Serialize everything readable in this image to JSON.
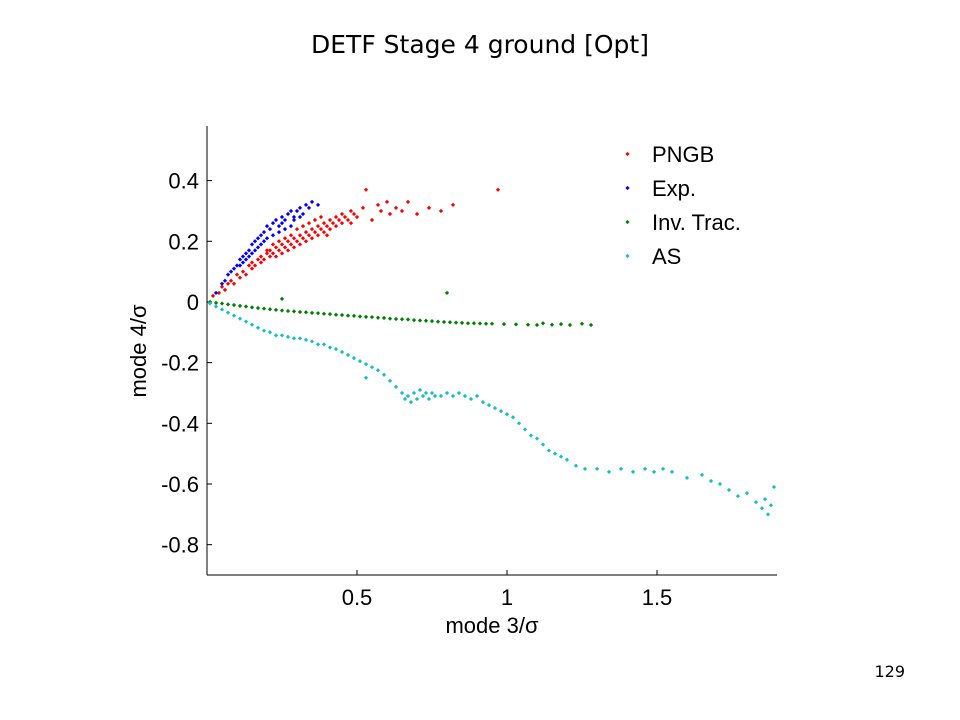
{
  "slide": {
    "title": "DETF Stage 4 ground [Opt]",
    "page_number": "129"
  },
  "chart_data": {
    "type": "scatter",
    "xlabel": "mode 3/σ",
    "ylabel": "mode 4/σ",
    "xlim": [
      0,
      1.9
    ],
    "ylim": [
      -0.9,
      0.58
    ],
    "xticks": [
      0.5,
      1,
      1.5
    ],
    "xtick_labels": [
      "0.5",
      "1",
      "1.5"
    ],
    "yticks": [
      0.4,
      0.2,
      0,
      -0.2,
      -0.4,
      -0.6,
      -0.8
    ],
    "ytick_labels": [
      "0.4",
      "0.2",
      "0",
      "-0.2",
      "-0.4",
      "-0.6",
      "-0.8"
    ],
    "grid": false,
    "legend_position": "top-right",
    "series": [
      {
        "name": "PNGB",
        "color": "#ff0000",
        "points": [
          [
            0.02,
            0.02
          ],
          [
            0.04,
            0.03
          ],
          [
            0.05,
            0.05
          ],
          [
            0.06,
            0.04
          ],
          [
            0.07,
            0.06
          ],
          [
            0.08,
            0.07
          ],
          [
            0.09,
            0.06
          ],
          [
            0.1,
            0.09
          ],
          [
            0.11,
            0.08
          ],
          [
            0.12,
            0.1
          ],
          [
            0.13,
            0.09
          ],
          [
            0.14,
            0.12
          ],
          [
            0.15,
            0.11
          ],
          [
            0.15,
            0.13
          ],
          [
            0.16,
            0.12
          ],
          [
            0.17,
            0.14
          ],
          [
            0.18,
            0.13
          ],
          [
            0.18,
            0.15
          ],
          [
            0.19,
            0.14
          ],
          [
            0.2,
            0.16
          ],
          [
            0.21,
            0.15
          ],
          [
            0.21,
            0.17
          ],
          [
            0.22,
            0.16
          ],
          [
            0.23,
            0.18
          ],
          [
            0.23,
            0.15
          ],
          [
            0.24,
            0.17
          ],
          [
            0.25,
            0.19
          ],
          [
            0.25,
            0.16
          ],
          [
            0.26,
            0.18
          ],
          [
            0.27,
            0.2
          ],
          [
            0.27,
            0.17
          ],
          [
            0.28,
            0.19
          ],
          [
            0.29,
            0.21
          ],
          [
            0.29,
            0.18
          ],
          [
            0.3,
            0.2
          ],
          [
            0.31,
            0.22
          ],
          [
            0.31,
            0.19
          ],
          [
            0.32,
            0.21
          ],
          [
            0.33,
            0.23
          ],
          [
            0.33,
            0.2
          ],
          [
            0.34,
            0.22
          ],
          [
            0.35,
            0.24
          ],
          [
            0.35,
            0.21
          ],
          [
            0.36,
            0.23
          ],
          [
            0.37,
            0.25
          ],
          [
            0.37,
            0.22
          ],
          [
            0.38,
            0.24
          ],
          [
            0.39,
            0.26
          ],
          [
            0.39,
            0.23
          ],
          [
            0.4,
            0.25
          ],
          [
            0.41,
            0.27
          ],
          [
            0.41,
            0.24
          ],
          [
            0.42,
            0.26
          ],
          [
            0.43,
            0.28
          ],
          [
            0.43,
            0.25
          ],
          [
            0.44,
            0.27
          ],
          [
            0.45,
            0.26
          ],
          [
            0.45,
            0.29
          ],
          [
            0.46,
            0.28
          ],
          [
            0.47,
            0.27
          ],
          [
            0.48,
            0.3
          ],
          [
            0.48,
            0.26
          ],
          [
            0.49,
            0.29
          ],
          [
            0.5,
            0.28
          ],
          [
            0.52,
            0.31
          ],
          [
            0.53,
            0.37
          ],
          [
            0.55,
            0.27
          ],
          [
            0.57,
            0.32
          ],
          [
            0.58,
            0.3
          ],
          [
            0.6,
            0.33
          ],
          [
            0.61,
            0.29
          ],
          [
            0.63,
            0.31
          ],
          [
            0.65,
            0.3
          ],
          [
            0.67,
            0.33
          ],
          [
            0.7,
            0.29
          ],
          [
            0.74,
            0.31
          ],
          [
            0.78,
            0.3
          ],
          [
            0.82,
            0.32
          ],
          [
            0.97,
            0.37
          ],
          [
            0.3,
            0.24
          ],
          [
            0.28,
            0.22
          ],
          [
            0.26,
            0.21
          ],
          [
            0.24,
            0.2
          ],
          [
            0.22,
            0.19
          ],
          [
            0.2,
            0.17
          ],
          [
            0.32,
            0.25
          ],
          [
            0.34,
            0.26
          ],
          [
            0.36,
            0.27
          ],
          [
            0.38,
            0.28
          ],
          [
            0.4,
            0.22
          ]
        ]
      },
      {
        "name": "Exp.",
        "color": "#0000ff",
        "points": [
          [
            0.03,
            0.03
          ],
          [
            0.05,
            0.06
          ],
          [
            0.06,
            0.07
          ],
          [
            0.07,
            0.09
          ],
          [
            0.08,
            0.1
          ],
          [
            0.09,
            0.11
          ],
          [
            0.1,
            0.12
          ],
          [
            0.11,
            0.14
          ],
          [
            0.12,
            0.15
          ],
          [
            0.13,
            0.16
          ],
          [
            0.14,
            0.17
          ],
          [
            0.15,
            0.19
          ],
          [
            0.16,
            0.2
          ],
          [
            0.17,
            0.21
          ],
          [
            0.18,
            0.22
          ],
          [
            0.19,
            0.23
          ],
          [
            0.2,
            0.25
          ],
          [
            0.21,
            0.24
          ],
          [
            0.22,
            0.26
          ],
          [
            0.23,
            0.27
          ],
          [
            0.24,
            0.25
          ],
          [
            0.25,
            0.28
          ],
          [
            0.26,
            0.27
          ],
          [
            0.27,
            0.29
          ],
          [
            0.28,
            0.3
          ],
          [
            0.29,
            0.28
          ],
          [
            0.3,
            0.3
          ],
          [
            0.31,
            0.31
          ],
          [
            0.32,
            0.29
          ],
          [
            0.33,
            0.32
          ],
          [
            0.34,
            0.31
          ],
          [
            0.35,
            0.33
          ],
          [
            0.37,
            0.32
          ],
          [
            0.12,
            0.13
          ],
          [
            0.14,
            0.15
          ],
          [
            0.16,
            0.17
          ],
          [
            0.18,
            0.19
          ],
          [
            0.2,
            0.21
          ],
          [
            0.22,
            0.22
          ],
          [
            0.24,
            0.23
          ],
          [
            0.26,
            0.24
          ],
          [
            0.28,
            0.25
          ],
          [
            0.19,
            0.2
          ],
          [
            0.17,
            0.18
          ],
          [
            0.15,
            0.16
          ],
          [
            0.13,
            0.14
          ],
          [
            0.11,
            0.12
          ],
          [
            0.25,
            0.26
          ],
          [
            0.29,
            0.27
          ],
          [
            0.31,
            0.28
          ]
        ]
      },
      {
        "name": "Inv. Trac.",
        "color": "#008000",
        "points": [
          [
            0.01,
            0.0
          ],
          [
            0.03,
            -0.003
          ],
          [
            0.05,
            -0.005
          ],
          [
            0.07,
            -0.008
          ],
          [
            0.09,
            -0.01
          ],
          [
            0.11,
            -0.013
          ],
          [
            0.13,
            -0.015
          ],
          [
            0.15,
            -0.018
          ],
          [
            0.17,
            -0.02
          ],
          [
            0.19,
            -0.022
          ],
          [
            0.21,
            -0.024
          ],
          [
            0.23,
            -0.026
          ],
          [
            0.25,
            -0.028
          ],
          [
            0.27,
            -0.03
          ],
          [
            0.29,
            -0.031
          ],
          [
            0.31,
            -0.033
          ],
          [
            0.33,
            -0.034
          ],
          [
            0.35,
            -0.036
          ],
          [
            0.37,
            -0.037
          ],
          [
            0.39,
            -0.039
          ],
          [
            0.41,
            -0.04
          ],
          [
            0.43,
            -0.042
          ],
          [
            0.45,
            -0.043
          ],
          [
            0.47,
            -0.045
          ],
          [
            0.49,
            -0.046
          ],
          [
            0.51,
            -0.048
          ],
          [
            0.53,
            -0.049
          ],
          [
            0.55,
            -0.05
          ],
          [
            0.57,
            -0.052
          ],
          [
            0.59,
            -0.053
          ],
          [
            0.61,
            -0.055
          ],
          [
            0.63,
            -0.056
          ],
          [
            0.65,
            -0.057
          ],
          [
            0.67,
            -0.058
          ],
          [
            0.69,
            -0.06
          ],
          [
            0.71,
            -0.061
          ],
          [
            0.73,
            -0.062
          ],
          [
            0.75,
            -0.063
          ],
          [
            0.77,
            -0.065
          ],
          [
            0.79,
            -0.066
          ],
          [
            0.81,
            -0.067
          ],
          [
            0.83,
            -0.068
          ],
          [
            0.85,
            -0.069
          ],
          [
            0.87,
            -0.07
          ],
          [
            0.89,
            -0.07
          ],
          [
            0.91,
            -0.071
          ],
          [
            0.93,
            -0.072
          ],
          [
            0.95,
            -0.072
          ],
          [
            0.99,
            -0.073
          ],
          [
            1.03,
            -0.074
          ],
          [
            1.07,
            -0.075
          ],
          [
            1.1,
            -0.076
          ],
          [
            1.12,
            -0.07
          ],
          [
            1.15,
            -0.075
          ],
          [
            1.18,
            -0.073
          ],
          [
            1.21,
            -0.076
          ],
          [
            1.25,
            -0.072
          ],
          [
            1.28,
            -0.076
          ],
          [
            0.8,
            0.03
          ],
          [
            0.25,
            0.01
          ]
        ]
      },
      {
        "name": "AS",
        "color": "#17bfc4",
        "points": [
          [
            0.01,
            -0.005
          ],
          [
            0.03,
            -0.015
          ],
          [
            0.05,
            -0.025
          ],
          [
            0.07,
            -0.035
          ],
          [
            0.09,
            -0.045
          ],
          [
            0.11,
            -0.055
          ],
          [
            0.13,
            -0.065
          ],
          [
            0.15,
            -0.075
          ],
          [
            0.17,
            -0.085
          ],
          [
            0.19,
            -0.095
          ],
          [
            0.21,
            -0.1
          ],
          [
            0.23,
            -0.11
          ],
          [
            0.25,
            -0.11
          ],
          [
            0.27,
            -0.115
          ],
          [
            0.29,
            -0.12
          ],
          [
            0.31,
            -0.12
          ],
          [
            0.33,
            -0.125
          ],
          [
            0.35,
            -0.13
          ],
          [
            0.37,
            -0.14
          ],
          [
            0.39,
            -0.14
          ],
          [
            0.41,
            -0.15
          ],
          [
            0.43,
            -0.155
          ],
          [
            0.45,
            -0.165
          ],
          [
            0.47,
            -0.175
          ],
          [
            0.49,
            -0.185
          ],
          [
            0.51,
            -0.195
          ],
          [
            0.53,
            -0.205
          ],
          [
            0.55,
            -0.215
          ],
          [
            0.57,
            -0.225
          ],
          [
            0.59,
            -0.24
          ],
          [
            0.61,
            -0.26
          ],
          [
            0.63,
            -0.28
          ],
          [
            0.65,
            -0.3
          ],
          [
            0.66,
            -0.32
          ],
          [
            0.67,
            -0.31
          ],
          [
            0.68,
            -0.33
          ],
          [
            0.69,
            -0.3
          ],
          [
            0.7,
            -0.32
          ],
          [
            0.71,
            -0.29
          ],
          [
            0.72,
            -0.31
          ],
          [
            0.73,
            -0.3
          ],
          [
            0.74,
            -0.32
          ],
          [
            0.75,
            -0.3
          ],
          [
            0.76,
            -0.31
          ],
          [
            0.78,
            -0.31
          ],
          [
            0.8,
            -0.3
          ],
          [
            0.82,
            -0.31
          ],
          [
            0.84,
            -0.3
          ],
          [
            0.86,
            -0.31
          ],
          [
            0.88,
            -0.32
          ],
          [
            0.9,
            -0.31
          ],
          [
            0.92,
            -0.33
          ],
          [
            0.94,
            -0.34
          ],
          [
            0.96,
            -0.35
          ],
          [
            0.98,
            -0.36
          ],
          [
            1.0,
            -0.37
          ],
          [
            1.02,
            -0.38
          ],
          [
            1.04,
            -0.4
          ],
          [
            1.06,
            -0.42
          ],
          [
            1.08,
            -0.44
          ],
          [
            1.1,
            -0.45
          ],
          [
            1.12,
            -0.47
          ],
          [
            1.14,
            -0.49
          ],
          [
            1.16,
            -0.5
          ],
          [
            1.18,
            -0.51
          ],
          [
            1.2,
            -0.52
          ],
          [
            1.23,
            -0.54
          ],
          [
            1.26,
            -0.55
          ],
          [
            1.3,
            -0.55
          ],
          [
            1.34,
            -0.56
          ],
          [
            1.38,
            -0.55
          ],
          [
            1.42,
            -0.56
          ],
          [
            1.46,
            -0.55
          ],
          [
            1.49,
            -0.56
          ],
          [
            1.52,
            -0.55
          ],
          [
            1.55,
            -0.56
          ],
          [
            1.6,
            -0.58
          ],
          [
            1.65,
            -0.57
          ],
          [
            1.68,
            -0.59
          ],
          [
            1.71,
            -0.6
          ],
          [
            1.74,
            -0.62
          ],
          [
            1.77,
            -0.64
          ],
          [
            1.8,
            -0.63
          ],
          [
            1.83,
            -0.66
          ],
          [
            1.85,
            -0.68
          ],
          [
            1.86,
            -0.65
          ],
          [
            1.87,
            -0.7
          ],
          [
            1.89,
            -0.61
          ],
          [
            1.88,
            -0.67
          ],
          [
            0.53,
            -0.25
          ]
        ]
      }
    ]
  }
}
